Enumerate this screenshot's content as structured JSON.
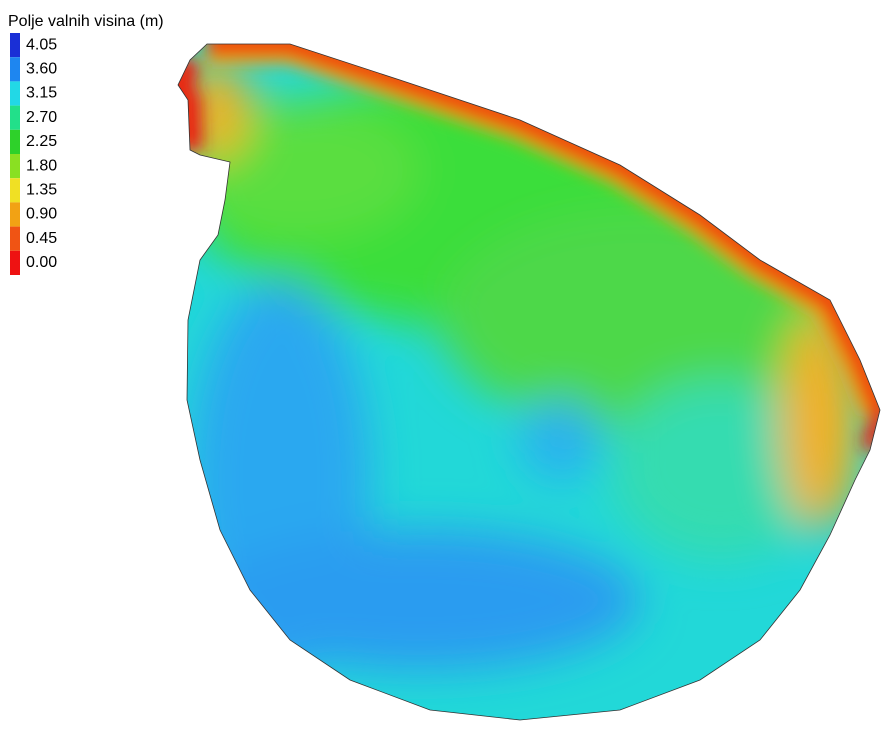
{
  "legend": {
    "title": "Polje valnih visina (m)",
    "entries": [
      {
        "value": 4.05,
        "label": "4.05",
        "color": "#1a2fd6"
      },
      {
        "value": 3.6,
        "label": "3.60",
        "color": "#1e86f0"
      },
      {
        "value": 3.15,
        "label": "3.15",
        "color": "#22d8e6"
      },
      {
        "value": 2.7,
        "label": "2.70",
        "color": "#22e08a"
      },
      {
        "value": 2.25,
        "label": "2.25",
        "color": "#2ed12a"
      },
      {
        "value": 1.8,
        "label": "1.80",
        "color": "#8ae022"
      },
      {
        "value": 1.35,
        "label": "1.35",
        "color": "#f0e024"
      },
      {
        "value": 0.9,
        "label": "0.90",
        "color": "#f2a214"
      },
      {
        "value": 0.45,
        "label": "0.45",
        "color": "#f05414"
      },
      {
        "value": 0,
        "label": "0.00",
        "color": "#ee1212"
      }
    ]
  }
}
